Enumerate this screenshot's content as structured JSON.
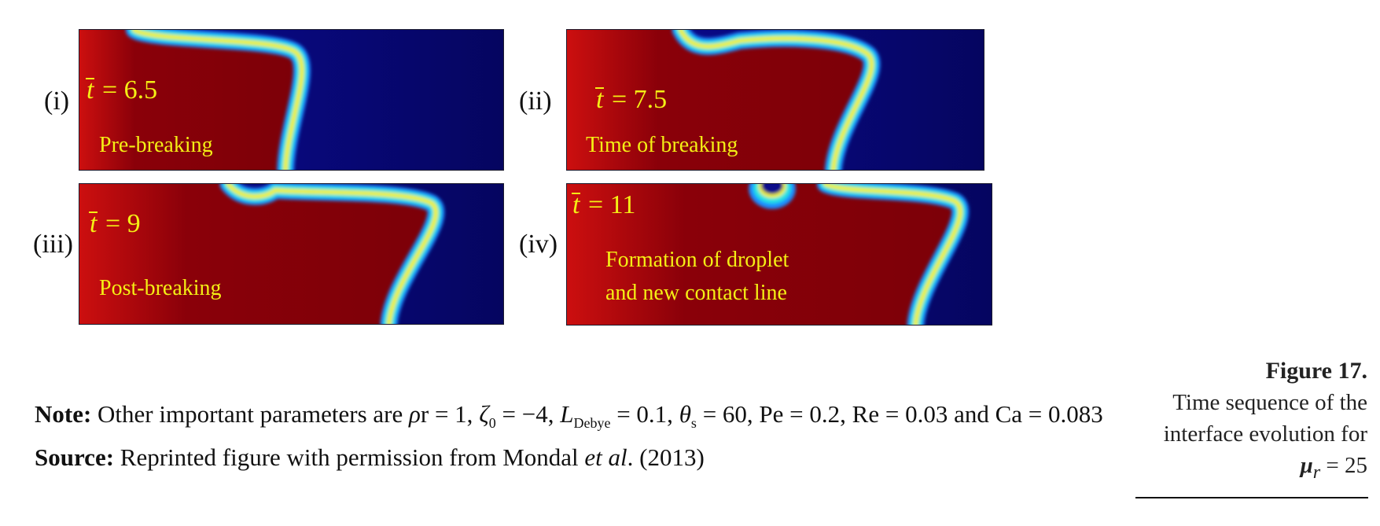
{
  "panels": [
    {
      "label": "(i)",
      "t_symbol": "t",
      "t_value": "= 6.5",
      "description_lines": [
        "Pre-breaking"
      ]
    },
    {
      "label": "(ii)",
      "t_symbol": "t",
      "t_value": "= 7.5",
      "description_lines": [
        "Time of breaking"
      ]
    },
    {
      "label": "(iii)",
      "t_symbol": "t",
      "t_value": "= 9",
      "description_lines": [
        "Post-breaking"
      ]
    },
    {
      "label": "(iv)",
      "t_symbol": "t",
      "t_value": "= 11",
      "description_lines": [
        "Formation of droplet",
        "and new contact line"
      ]
    }
  ],
  "colors": {
    "liquid_red": "#8a0009",
    "liquid_bright": "#cc0f0f",
    "background_blue": "#0a0a8a",
    "label_yellow": "#f4ef15"
  },
  "note": {
    "note_label": "Note:",
    "note_text_1": " Other important parameters are ",
    "rho": "ρ",
    "note_text_2": "r = 1, ",
    "zeta": "ζ",
    "zeta_sub": "0",
    "note_text_3": " = −4, ",
    "L": "L",
    "L_sub": "Debye",
    "note_text_4": " = 0.1, ",
    "theta": "θ",
    "theta_sub": "s",
    "note_text_5": " = 60, Pe = 0.2, Re = 0.03 and Ca = 0.083",
    "source_label": "Source:",
    "source_text_1": " Reprinted figure with permission from Mondal ",
    "source_etal": "et al",
    "source_text_2": ". (2013)"
  },
  "caption": {
    "figure_label": "Figure 17.",
    "line1": "Time sequence of the",
    "line2": "interface evolution for",
    "mu": "μ",
    "mu_sub": "r",
    "mu_value": " = 25"
  }
}
